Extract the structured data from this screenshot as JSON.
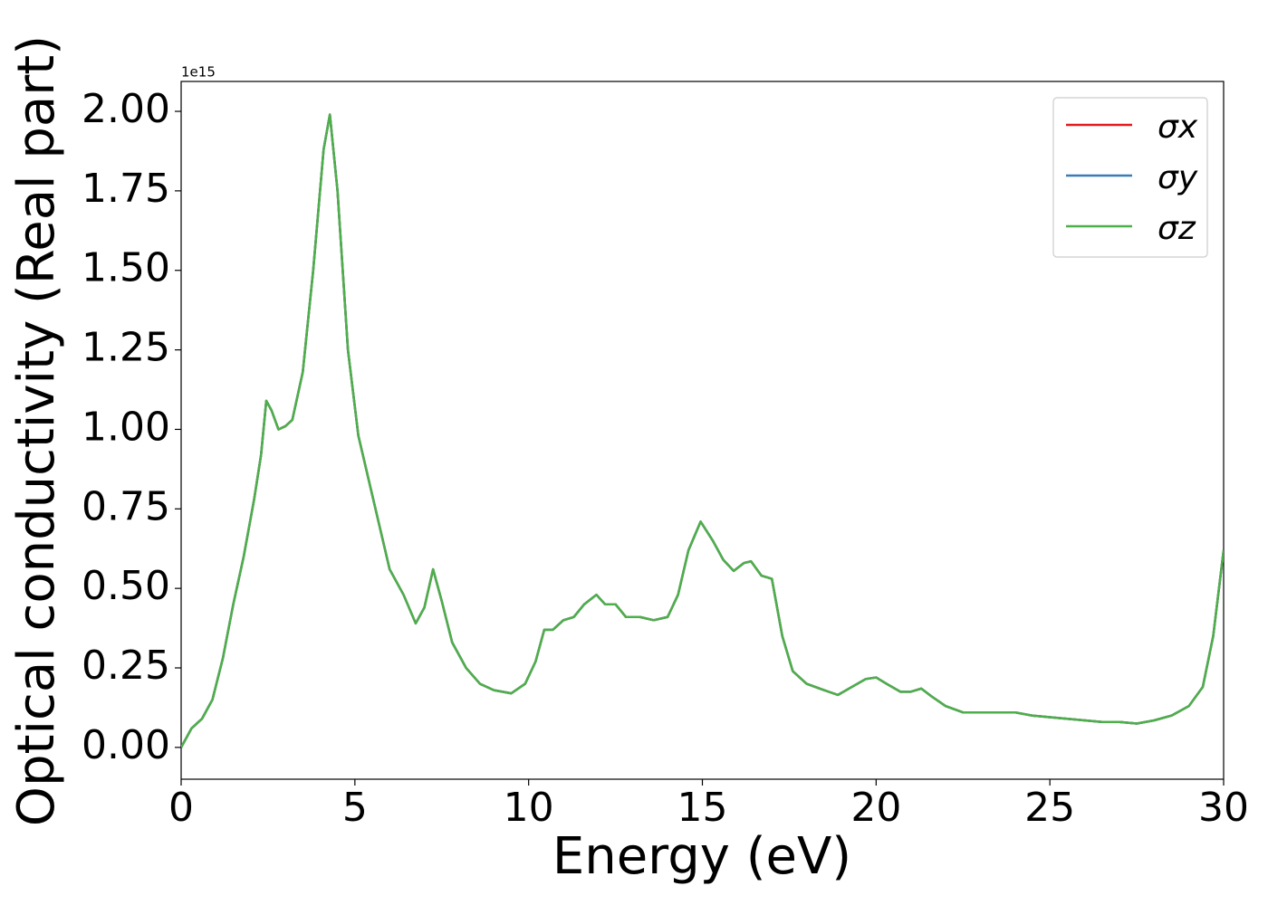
{
  "chart_data": {
    "type": "line",
    "y_label": "Optical conductivity (Real part)",
    "x_label": "Energy (eV)",
    "y_offset_label": "1e15",
    "x": [
      0,
      0.3,
      0.6,
      0.9,
      1.2,
      1.5,
      1.8,
      2.1,
      2.3,
      2.45,
      2.6,
      2.8,
      3.0,
      3.2,
      3.5,
      3.8,
      4.1,
      4.28,
      4.5,
      4.8,
      5.1,
      5.4,
      5.7,
      6.0,
      6.4,
      6.75,
      7.0,
      7.25,
      7.5,
      7.8,
      8.2,
      8.6,
      9.0,
      9.5,
      9.9,
      10.2,
      10.45,
      10.7,
      11.0,
      11.3,
      11.6,
      11.95,
      12.2,
      12.5,
      12.8,
      13.2,
      13.6,
      14.0,
      14.3,
      14.6,
      14.95,
      15.3,
      15.6,
      15.9,
      16.2,
      16.4,
      16.7,
      17.0,
      17.3,
      17.6,
      18.0,
      18.5,
      18.9,
      19.3,
      19.7,
      20.0,
      20.3,
      20.7,
      21.0,
      21.3,
      21.6,
      22.0,
      22.5,
      23.0,
      23.5,
      24.0,
      24.5,
      25.0,
      25.5,
      26.0,
      26.5,
      27.0,
      27.5,
      28.0,
      28.5,
      29.0,
      29.4,
      29.7,
      30.0
    ],
    "series": [
      {
        "name": "σx",
        "color": "#e41a1c",
        "values": [
          0.0,
          0.06,
          0.09,
          0.15,
          0.28,
          0.45,
          0.6,
          0.78,
          0.92,
          1.09,
          1.06,
          1.0,
          1.01,
          1.03,
          1.18,
          1.5,
          1.88,
          1.99,
          1.75,
          1.25,
          0.98,
          0.84,
          0.7,
          0.56,
          0.48,
          0.39,
          0.44,
          0.56,
          0.46,
          0.33,
          0.25,
          0.2,
          0.18,
          0.17,
          0.2,
          0.27,
          0.37,
          0.37,
          0.4,
          0.41,
          0.45,
          0.48,
          0.45,
          0.45,
          0.41,
          0.41,
          0.4,
          0.41,
          0.48,
          0.62,
          0.71,
          0.65,
          0.59,
          0.555,
          0.58,
          0.585,
          0.54,
          0.53,
          0.35,
          0.24,
          0.2,
          0.18,
          0.165,
          0.19,
          0.215,
          0.22,
          0.2,
          0.175,
          0.175,
          0.185,
          0.16,
          0.13,
          0.11,
          0.11,
          0.11,
          0.11,
          0.1,
          0.095,
          0.09,
          0.085,
          0.08,
          0.08,
          0.075,
          0.085,
          0.1,
          0.13,
          0.19,
          0.35,
          0.62
        ]
      },
      {
        "name": "σy",
        "color": "#377eb8",
        "values": [
          0.0,
          0.06,
          0.09,
          0.15,
          0.28,
          0.45,
          0.6,
          0.78,
          0.92,
          1.09,
          1.06,
          1.0,
          1.01,
          1.03,
          1.18,
          1.5,
          1.88,
          1.99,
          1.75,
          1.25,
          0.98,
          0.84,
          0.7,
          0.56,
          0.48,
          0.39,
          0.44,
          0.56,
          0.46,
          0.33,
          0.25,
          0.2,
          0.18,
          0.17,
          0.2,
          0.27,
          0.37,
          0.37,
          0.4,
          0.41,
          0.45,
          0.48,
          0.45,
          0.45,
          0.41,
          0.41,
          0.4,
          0.41,
          0.48,
          0.62,
          0.71,
          0.65,
          0.59,
          0.555,
          0.58,
          0.585,
          0.54,
          0.53,
          0.35,
          0.24,
          0.2,
          0.18,
          0.165,
          0.19,
          0.215,
          0.22,
          0.2,
          0.175,
          0.175,
          0.185,
          0.16,
          0.13,
          0.11,
          0.11,
          0.11,
          0.11,
          0.1,
          0.095,
          0.09,
          0.085,
          0.08,
          0.08,
          0.075,
          0.085,
          0.1,
          0.13,
          0.19,
          0.35,
          0.62
        ]
      },
      {
        "name": "σz",
        "color": "#4daf4a",
        "values": [
          0.0,
          0.06,
          0.09,
          0.15,
          0.28,
          0.45,
          0.6,
          0.78,
          0.92,
          1.09,
          1.06,
          1.0,
          1.01,
          1.03,
          1.18,
          1.5,
          1.88,
          1.99,
          1.75,
          1.25,
          0.98,
          0.84,
          0.7,
          0.56,
          0.48,
          0.39,
          0.44,
          0.56,
          0.46,
          0.33,
          0.25,
          0.2,
          0.18,
          0.17,
          0.2,
          0.27,
          0.37,
          0.37,
          0.4,
          0.41,
          0.45,
          0.48,
          0.45,
          0.45,
          0.41,
          0.41,
          0.4,
          0.41,
          0.48,
          0.62,
          0.71,
          0.65,
          0.59,
          0.555,
          0.58,
          0.585,
          0.54,
          0.53,
          0.35,
          0.24,
          0.2,
          0.18,
          0.165,
          0.19,
          0.215,
          0.22,
          0.2,
          0.175,
          0.175,
          0.185,
          0.16,
          0.13,
          0.11,
          0.11,
          0.11,
          0.11,
          0.1,
          0.095,
          0.09,
          0.085,
          0.08,
          0.08,
          0.075,
          0.085,
          0.1,
          0.13,
          0.19,
          0.35,
          0.62
        ]
      }
    ],
    "xlim": [
      0,
      30
    ],
    "xticks": [
      0,
      5,
      10,
      15,
      20,
      25,
      30
    ],
    "ylim": [
      -0.1,
      2.094
    ],
    "yticks": [
      {
        "value": 0,
        "label": "0.00"
      },
      {
        "value": 0.25,
        "label": "0.25"
      },
      {
        "value": 0.5,
        "label": "0.50"
      },
      {
        "value": 0.75,
        "label": "0.75"
      },
      {
        "value": 1,
        "label": "1.00"
      },
      {
        "value": 1.25,
        "label": "1.25"
      },
      {
        "value": 1.5,
        "label": "1.50"
      },
      {
        "value": 1.75,
        "label": "1.75"
      },
      {
        "value": 2,
        "label": "2.00"
      }
    ],
    "legend": "upper right",
    "grid": false
  }
}
